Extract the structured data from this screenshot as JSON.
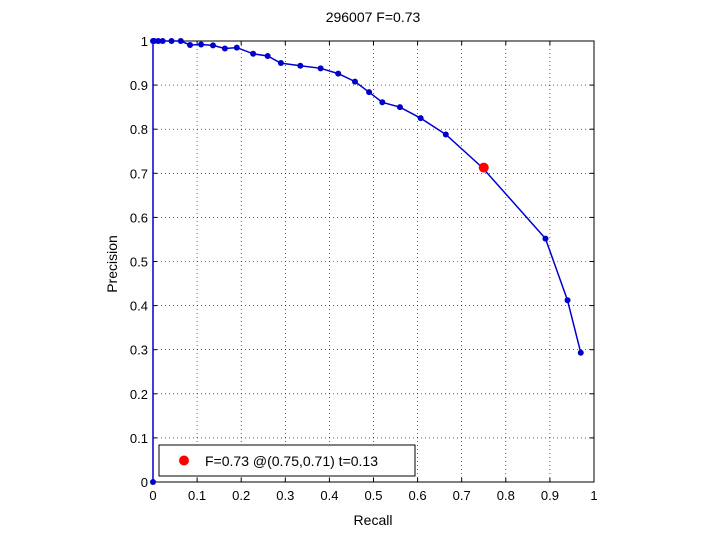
{
  "chart_data": {
    "type": "line",
    "title": "296007 F=0.73",
    "xlabel": "Recall",
    "ylabel": "Precision",
    "xlim": [
      0,
      1
    ],
    "ylim": [
      0,
      1
    ],
    "grid": true,
    "x_ticks": [
      "0",
      "0.1",
      "0.2",
      "0.3",
      "0.4",
      "0.5",
      "0.6",
      "0.7",
      "0.8",
      "0.9",
      "1"
    ],
    "y_ticks": [
      "0",
      "0.1",
      "0.2",
      "0.3",
      "0.4",
      "0.5",
      "0.6",
      "0.7",
      "0.8",
      "0.9",
      "1"
    ],
    "series": [
      {
        "color": "#0000cc",
        "marker": "dot",
        "points": [
          [
            0,
            0
          ],
          [
            0,
            1
          ],
          [
            0.003,
            1
          ],
          [
            0.012,
            1
          ],
          [
            0.022,
            1
          ],
          [
            0.042,
            1
          ],
          [
            0.063,
            1
          ],
          [
            0.084,
            0.991
          ],
          [
            0.109,
            0.992
          ],
          [
            0.136,
            0.99
          ],
          [
            0.163,
            0.983
          ],
          [
            0.19,
            0.985
          ],
          [
            0.227,
            0.971
          ],
          [
            0.26,
            0.966
          ],
          [
            0.29,
            0.95
          ],
          [
            0.334,
            0.944
          ],
          [
            0.38,
            0.938
          ],
          [
            0.42,
            0.926
          ],
          [
            0.458,
            0.908
          ],
          [
            0.49,
            0.884
          ],
          [
            0.52,
            0.861
          ],
          [
            0.56,
            0.85
          ],
          [
            0.607,
            0.825
          ],
          [
            0.664,
            0.788
          ],
          [
            0.747,
            0.713
          ],
          [
            0.89,
            0.552
          ],
          [
            0.94,
            0.412
          ],
          [
            0.97,
            0.293
          ]
        ]
      }
    ],
    "highlight": {
      "x": 0.75,
      "y": 0.713,
      "color": "#ff0000"
    },
    "legend": {
      "position": "bottom-left",
      "entries": [
        {
          "label": "F=0.73 @(0.75,0.71) t=0.13",
          "color": "#ff0000"
        }
      ]
    }
  }
}
